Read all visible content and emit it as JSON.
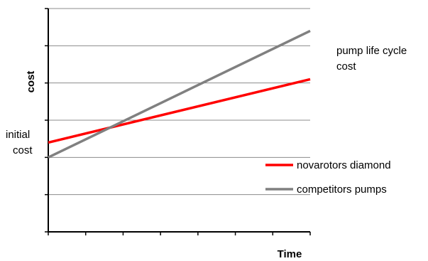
{
  "chart_data": {
    "type": "line",
    "xlabel": "Time",
    "ylabel": "cost",
    "xlim": [
      0,
      7
    ],
    "ylim": [
      0,
      6
    ],
    "grid": true,
    "legend_position": "right",
    "series": [
      {
        "name": "novarotors diamond",
        "x": [
          0,
          7
        ],
        "y": [
          2.4,
          4.1
        ],
        "color": "#ff0000"
      },
      {
        "name": "competitors pumps",
        "x": [
          0,
          7
        ],
        "y": [
          2.0,
          5.4
        ],
        "color": "#808080"
      }
    ],
    "annotations": [
      {
        "text": "pump life cycle cost",
        "lines": [
          "pump life cycle",
          "cost"
        ]
      },
      {
        "text": "initial cost",
        "lines": [
          "initial",
          "cost"
        ]
      }
    ]
  }
}
